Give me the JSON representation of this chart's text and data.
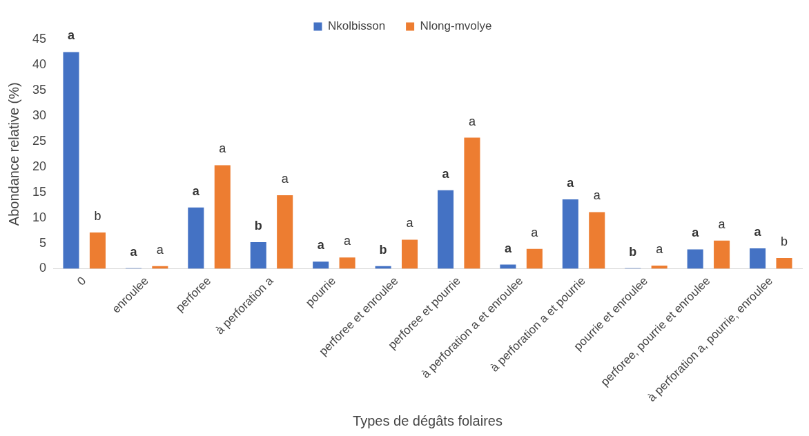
{
  "chart_data": {
    "type": "bar",
    "xlabel": "Types de dégâts folaires",
    "ylabel": "Abondance relative (%)",
    "categories": [
      "0",
      "enroulee",
      "perforee",
      "à perforation a",
      "pourrie",
      "perforee et enroulee",
      "perforee et pourrie",
      "à perforation a et enroulee",
      "à perforation a et pourrie",
      "pourrie et enroulee",
      "perforee, pourrie et enroulee",
      "à perforation a, pourrie, enroulee"
    ],
    "series": [
      {
        "name": "Nkolbisson",
        "color": "#4472c4",
        "values": [
          42.5,
          0.1,
          12.0,
          5.2,
          1.4,
          0.5,
          15.4,
          0.8,
          13.6,
          0.1,
          3.8,
          4.0
        ],
        "value_labels": [
          "a",
          "a",
          "a",
          "b",
          "a",
          "b",
          "a",
          "a",
          "a",
          "b",
          "a",
          "a"
        ]
      },
      {
        "name": "Nlong-mvolye",
        "color": "#ed7d31",
        "values": [
          7.1,
          0.5,
          20.3,
          14.4,
          2.2,
          5.7,
          25.7,
          3.9,
          11.1,
          0.6,
          5.5,
          2.1
        ],
        "value_labels": [
          "b",
          "a",
          "a",
          "a",
          "a",
          "a",
          "a",
          "a",
          "a",
          "a",
          "a",
          "b"
        ]
      }
    ],
    "ylim": [
      0,
      45
    ],
    "yticks": [
      0,
      5,
      10,
      15,
      20,
      25,
      30,
      35,
      40,
      45
    ],
    "grid": false,
    "legend": "top"
  }
}
